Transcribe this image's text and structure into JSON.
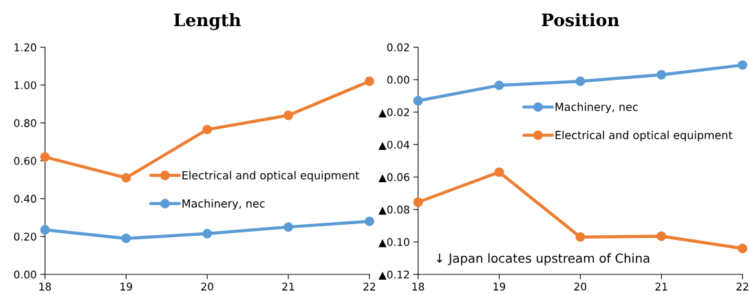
{
  "chart_data": [
    {
      "type": "line",
      "title": "Length",
      "x": [
        18,
        19,
        20,
        21,
        22
      ],
      "xlim": [
        18,
        22
      ],
      "xticks": [
        18,
        19,
        20,
        21,
        22
      ],
      "ylim": [
        0,
        1.2
      ],
      "yticks": [
        {
          "value": 0,
          "label": "0.00"
        },
        {
          "value": 0.2,
          "label": "0.20"
        },
        {
          "value": 0.4,
          "label": "0.40"
        },
        {
          "value": 0.6,
          "label": "0.60"
        },
        {
          "value": 0.8,
          "label": "0.80"
        },
        {
          "value": 1.0,
          "label": "1.00"
        },
        {
          "value": 1.2,
          "label": "1.20"
        }
      ],
      "marker": "circle",
      "line_style": "solid",
      "grid": false,
      "legend": "right",
      "series": [
        {
          "name": "Electrical and optical equipment",
          "color": "#ed7d31",
          "values": [
            0.62,
            0.51,
            0.765,
            0.84,
            1.02
          ]
        },
        {
          "name": "Machinery, nec",
          "color": "#5b9bd5",
          "values": [
            0.235,
            0.19,
            0.215,
            0.25,
            0.28
          ]
        }
      ]
    },
    {
      "type": "line",
      "title": "Position",
      "x": [
        18,
        19,
        20,
        21,
        22
      ],
      "xlim": [
        18,
        22
      ],
      "xticks": [
        18,
        19,
        20,
        21,
        22
      ],
      "ylim": [
        -0.12,
        0.02
      ],
      "yticks": [
        {
          "value": -0.12,
          "label": "▲0.12"
        },
        {
          "value": -0.1,
          "label": "▲0.10"
        },
        {
          "value": -0.08,
          "label": "▲0.08"
        },
        {
          "value": -0.06,
          "label": "▲0.06"
        },
        {
          "value": -0.04,
          "label": "▲0.04"
        },
        {
          "value": -0.02,
          "label": "▲0.02"
        },
        {
          "value": 0,
          "label": "0.00"
        },
        {
          "value": 0.02,
          "label": "0.02"
        }
      ],
      "marker": "circle",
      "line_style": "solid",
      "grid": false,
      "legend": "top right",
      "annotations": [
        "↓ Japan locates upstream of China"
      ],
      "series": [
        {
          "name": "Machinery, nec",
          "color": "#5b9bd5",
          "values": [
            -0.013,
            -0.0035,
            -0.001,
            0.003,
            0.009
          ]
        },
        {
          "name": "Electrical and optical equipment",
          "color": "#ed7d31",
          "values": [
            -0.0755,
            -0.057,
            -0.097,
            -0.0965,
            -0.104
          ]
        }
      ]
    }
  ]
}
